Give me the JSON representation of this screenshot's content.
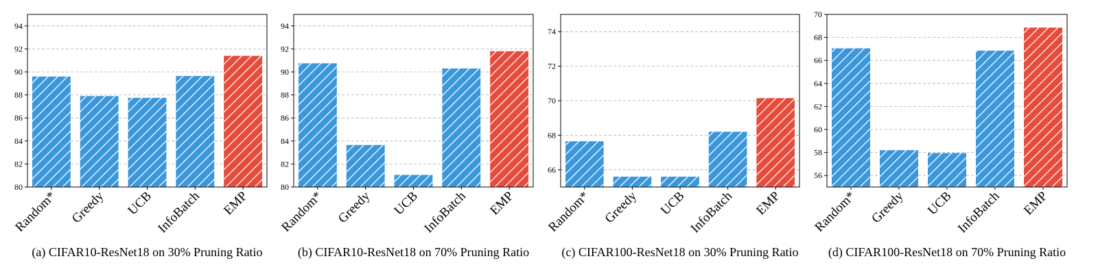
{
  "colors": {
    "baseline": "#3B97DB",
    "highlight": "#E64B3B",
    "grid": "#aaaaaa",
    "hatch": "#ffffff"
  },
  "chart_data": [
    {
      "type": "bar",
      "caption": "(a) CIFAR10-ResNet18 on 30% Pruning Ratio",
      "categories": [
        "Random*",
        "Greedy",
        "UCB",
        "InfoBatch",
        "EMP"
      ],
      "values": [
        89.6,
        87.9,
        87.75,
        89.65,
        91.4
      ],
      "highlight": "EMP",
      "ylim": [
        80,
        95
      ],
      "yticks": [
        80,
        82,
        84,
        86,
        88,
        90,
        92,
        94
      ],
      "grid": true,
      "xlabel": "",
      "ylabel": ""
    },
    {
      "type": "bar",
      "caption": "(b) CIFAR10-ResNet18 on 70% Pruning Ratio",
      "categories": [
        "Random*",
        "Greedy",
        "UCB",
        "InfoBatch",
        "EMP"
      ],
      "values": [
        90.75,
        83.65,
        81.05,
        90.3,
        91.8
      ],
      "highlight": "EMP",
      "ylim": [
        80,
        95
      ],
      "yticks": [
        80,
        82,
        84,
        86,
        88,
        90,
        92,
        94
      ],
      "grid": true,
      "xlabel": "",
      "ylabel": ""
    },
    {
      "type": "bar",
      "caption": "(c) CIFAR100-ResNet18 on 30% Pruning Ratio",
      "categories": [
        "Random*",
        "Greedy",
        "UCB",
        "InfoBatch",
        "EMP"
      ],
      "values": [
        67.65,
        65.6,
        65.6,
        68.2,
        70.15
      ],
      "highlight": "EMP",
      "ylim": [
        65,
        75
      ],
      "yticks": [
        66,
        68,
        70,
        72,
        74
      ],
      "grid": true,
      "xlabel": "",
      "ylabel": ""
    },
    {
      "type": "bar",
      "caption": "(d) CIFAR100-ResNet18 on 70% Pruning Ratio",
      "categories": [
        "Random*",
        "Greedy",
        "UCB",
        "InfoBatch",
        "EMP"
      ],
      "values": [
        67.05,
        58.2,
        57.95,
        66.85,
        68.85
      ],
      "highlight": "EMP",
      "ylim": [
        55,
        70
      ],
      "yticks": [
        56,
        58,
        60,
        62,
        64,
        66,
        68,
        70
      ],
      "grid": true,
      "xlabel": "",
      "ylabel": ""
    }
  ]
}
